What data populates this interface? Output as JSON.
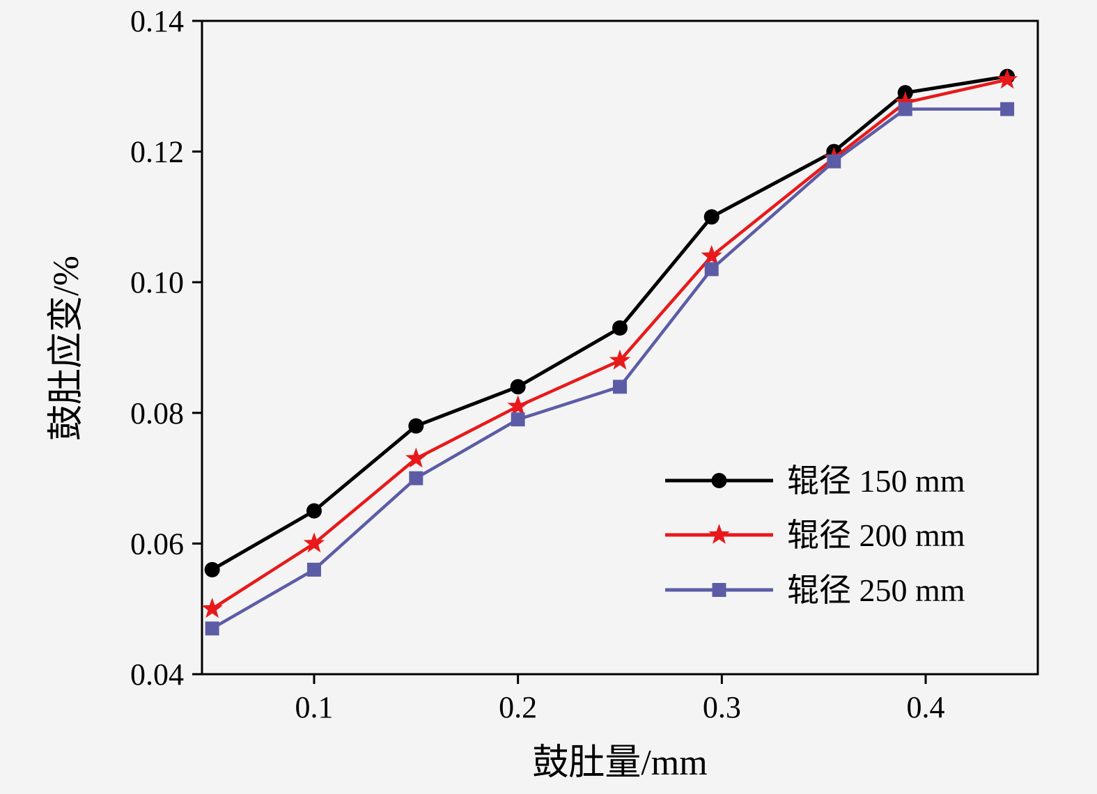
{
  "chart_data": {
    "type": "line",
    "title": "",
    "xlabel": "鼓肚量/mm",
    "ylabel": "鼓肚应变/%",
    "xlim": [
      0.045,
      0.455
    ],
    "ylim": [
      0.04,
      0.14
    ],
    "x_ticks": [
      0.1,
      0.2,
      0.3,
      0.4
    ],
    "x_tick_labels": [
      "0.1",
      "0.2",
      "0.3",
      "0.4"
    ],
    "y_ticks": [
      0.04,
      0.06,
      0.08,
      0.1,
      0.12,
      0.14
    ],
    "y_tick_labels": [
      "0.04",
      "0.06",
      "0.08",
      "0.10",
      "0.12",
      "0.14"
    ],
    "grid": false,
    "legend_position": "right-center-inside",
    "background": "#f4f4f4",
    "x": [
      0.05,
      0.1,
      0.15,
      0.2,
      0.25,
      0.295,
      0.355,
      0.39,
      0.44
    ],
    "series": [
      {
        "name": "辊径 150 mm",
        "color": "#000000",
        "marker": "circle",
        "values": [
          0.056,
          0.065,
          0.078,
          0.084,
          0.093,
          0.11,
          0.12,
          0.129,
          0.1315
        ]
      },
      {
        "name": "辊径 200 mm",
        "color": "#e8191a",
        "marker": "star",
        "values": [
          0.05,
          0.06,
          0.073,
          0.081,
          0.088,
          0.104,
          0.119,
          0.1275,
          0.131
        ]
      },
      {
        "name": "辊径 250 mm",
        "color": "#5c5ca6",
        "marker": "square",
        "values": [
          0.047,
          0.056,
          0.07,
          0.079,
          0.084,
          0.102,
          0.1185,
          0.1265,
          0.1265
        ]
      }
    ]
  }
}
